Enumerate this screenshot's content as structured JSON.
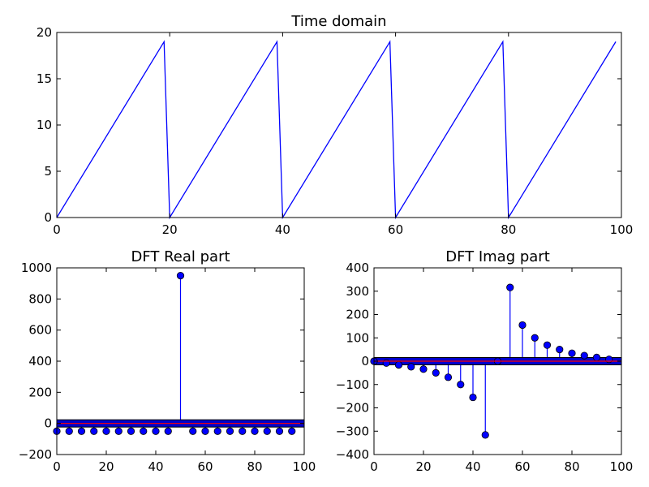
{
  "chart_data": [
    {
      "type": "line",
      "title": "Time domain",
      "xlabel": "",
      "ylabel": "",
      "xlim": [
        0,
        100
      ],
      "ylim": [
        0,
        20
      ],
      "x_ticks": [
        "0",
        "20",
        "40",
        "60",
        "80",
        "100"
      ],
      "y_ticks": [
        "0",
        "5",
        "10",
        "15",
        "20"
      ],
      "grid": false,
      "line_color": "#0000ff",
      "series": [
        {
          "x": [
            0,
            19,
            20,
            39,
            40,
            59,
            60,
            79,
            80,
            99
          ],
          "y": [
            0,
            19,
            0,
            19,
            0,
            19,
            0,
            19,
            0,
            19
          ]
        }
      ]
    },
    {
      "type": "stem",
      "title": "DFT Real part",
      "xlabel": "",
      "ylabel": "",
      "xlim": [
        0,
        100
      ],
      "ylim": [
        -200,
        1000
      ],
      "x_ticks": [
        "0",
        "20",
        "40",
        "60",
        "80",
        "100"
      ],
      "y_ticks": [
        "−200",
        "0",
        "200",
        "400",
        "600",
        "800",
        "1000"
      ],
      "grid": false,
      "stem_color": "#0000ff",
      "marker_color": "#0000ff",
      "baseline_color": "#ff0000",
      "x": [
        0,
        5,
        10,
        15,
        20,
        25,
        30,
        35,
        40,
        45,
        50,
        55,
        60,
        65,
        70,
        75,
        80,
        85,
        90,
        95
      ],
      "values": [
        -50,
        -50,
        -50,
        -50,
        -50,
        -50,
        -50,
        -50,
        -50,
        -50,
        950,
        -50,
        -50,
        -50,
        -50,
        -50,
        -50,
        -50,
        -50,
        -50
      ]
    },
    {
      "type": "stem",
      "title": "DFT Imag part",
      "xlabel": "",
      "ylabel": "",
      "xlim": [
        0,
        100
      ],
      "ylim": [
        -400,
        400
      ],
      "x_ticks": [
        "0",
        "20",
        "40",
        "60",
        "80",
        "100"
      ],
      "y_ticks": [
        "−400",
        "−300",
        "−200",
        "−100",
        "0",
        "100",
        "200",
        "300",
        "400"
      ],
      "grid": false,
      "stem_color": "#0000ff",
      "marker_color": "#0000ff",
      "baseline_color": "#ff0000",
      "x": [
        0,
        5,
        10,
        15,
        20,
        25,
        30,
        35,
        40,
        45,
        50,
        55,
        60,
        65,
        70,
        75,
        80,
        85,
        90,
        95
      ],
      "values": [
        0,
        -8,
        -16,
        -24,
        -34,
        -50,
        -69,
        -100,
        -155,
        -316,
        0,
        316,
        155,
        100,
        69,
        50,
        34,
        24,
        16,
        8
      ]
    }
  ]
}
